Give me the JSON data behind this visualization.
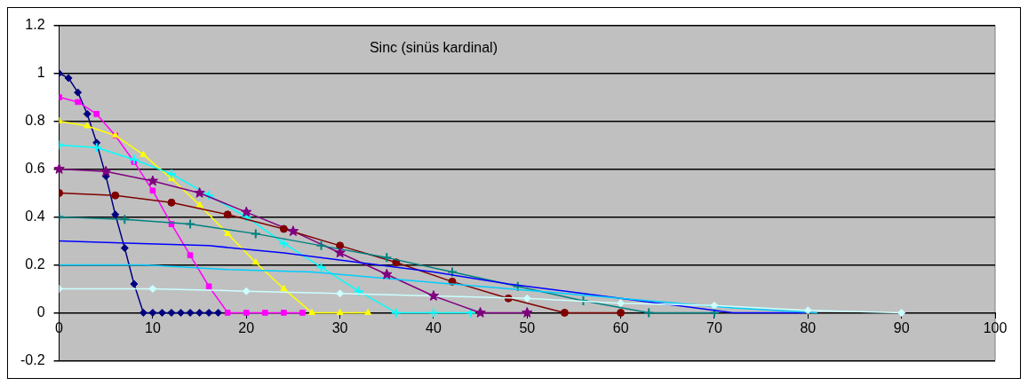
{
  "chart_data": {
    "type": "line",
    "title": "Sinc (sinüs kardinal)",
    "xlim": [
      0,
      100
    ],
    "xticks": [
      0,
      10,
      20,
      30,
      40,
      50,
      60,
      70,
      80,
      90,
      100
    ],
    "ylim": [
      -0.2,
      1.2
    ],
    "yticks": [
      -0.2,
      0,
      0.2,
      0.4,
      0.6,
      0.8,
      1,
      1.2
    ],
    "grid": "y",
    "legend": false,
    "series": [
      {
        "color": "#000080",
        "marker": "diamond",
        "x": [
          0,
          1,
          2,
          3,
          4,
          5,
          6,
          7,
          8,
          9,
          10,
          11,
          12,
          13,
          14,
          15,
          16,
          17
        ],
        "values": [
          1,
          0.98,
          0.92,
          0.83,
          0.71,
          0.57,
          0.41,
          0.27,
          0.12,
          0,
          0,
          0,
          0,
          0,
          0,
          0,
          0,
          0
        ]
      },
      {
        "color": "#ff00ff",
        "marker": "square",
        "x": [
          0,
          2,
          4,
          6,
          8,
          10,
          12,
          14,
          16,
          18,
          20,
          22,
          24,
          26
        ],
        "values": [
          0.9,
          0.88,
          0.83,
          0.74,
          0.63,
          0.51,
          0.37,
          0.24,
          0.11,
          0,
          0,
          0,
          0,
          0
        ]
      },
      {
        "color": "#ffff00",
        "marker": "triangle",
        "x": [
          0,
          3,
          6,
          9,
          12,
          15,
          18,
          21,
          24,
          27,
          30,
          33
        ],
        "values": [
          0.8,
          0.78,
          0.74,
          0.66,
          0.56,
          0.45,
          0.33,
          0.21,
          0.1,
          0,
          0,
          0
        ]
      },
      {
        "color": "#00ffff",
        "marker": "cross",
        "x": [
          0,
          4,
          8,
          12,
          16,
          20,
          24,
          28,
          32,
          36,
          40,
          44
        ],
        "values": [
          0.7,
          0.69,
          0.64,
          0.58,
          0.49,
          0.4,
          0.29,
          0.19,
          0.09,
          0,
          0,
          0
        ]
      },
      {
        "color": "#800080",
        "marker": "star",
        "x": [
          0,
          5,
          10,
          15,
          20,
          25,
          30,
          35,
          40,
          45,
          50
        ],
        "values": [
          0.6,
          0.59,
          0.55,
          0.5,
          0.42,
          0.34,
          0.25,
          0.16,
          0.07,
          0,
          0
        ]
      },
      {
        "color": "#800000",
        "marker": "circle",
        "x": [
          0,
          6,
          12,
          18,
          24,
          30,
          36,
          42,
          48,
          54,
          60
        ],
        "values": [
          0.5,
          0.49,
          0.46,
          0.41,
          0.35,
          0.28,
          0.21,
          0.13,
          0.06,
          0,
          0
        ]
      },
      {
        "color": "#008080",
        "marker": "cross",
        "x": [
          0,
          7,
          14,
          21,
          28,
          35,
          42,
          49,
          56,
          63,
          70
        ],
        "values": [
          0.4,
          0.39,
          0.37,
          0.33,
          0.28,
          0.23,
          0.17,
          0.11,
          0.05,
          0,
          0
        ]
      },
      {
        "color": "#0000ff",
        "marker": "none",
        "x": [
          0,
          8,
          16,
          24,
          32,
          40,
          48,
          56,
          64,
          72,
          80
        ],
        "values": [
          0.3,
          0.29,
          0.28,
          0.25,
          0.21,
          0.17,
          0.12,
          0.08,
          0.04,
          0,
          0
        ]
      },
      {
        "color": "#00ccff",
        "marker": "none",
        "x": [
          0,
          9,
          18,
          27,
          36,
          45,
          54,
          63,
          72,
          81
        ],
        "values": [
          0.2,
          0.2,
          0.18,
          0.17,
          0.14,
          0.11,
          0.08,
          0.05,
          0.02,
          0
        ]
      },
      {
        "color": "#ccffff",
        "marker": "diamond",
        "x": [
          0,
          10,
          20,
          30,
          40,
          50,
          60,
          70,
          80,
          90
        ],
        "values": [
          0.1,
          0.1,
          0.09,
          0.08,
          0.07,
          0.06,
          0.04,
          0.03,
          0.01,
          0
        ]
      }
    ]
  }
}
